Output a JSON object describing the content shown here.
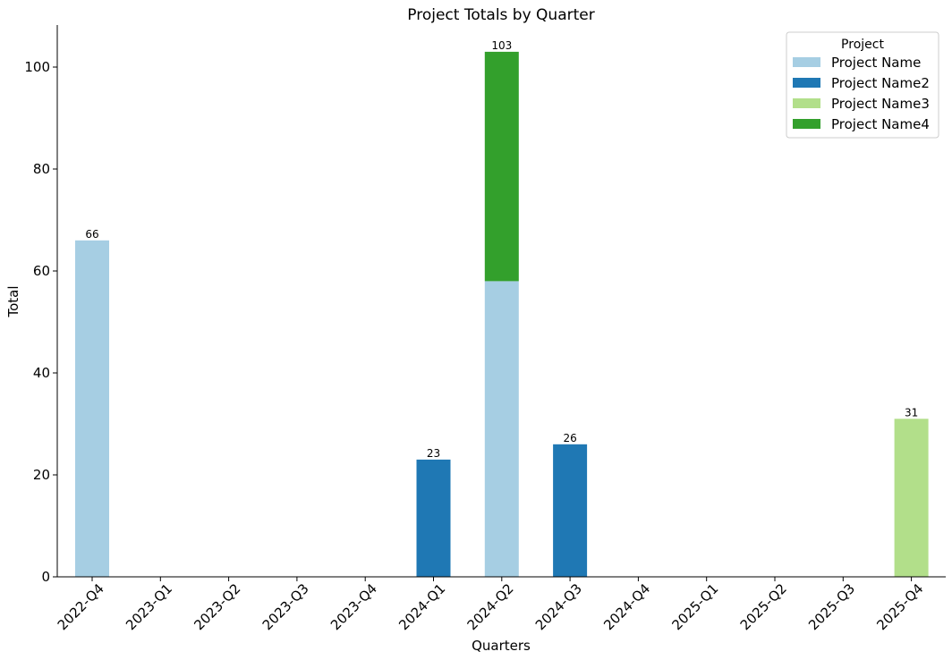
{
  "chart_data": {
    "type": "bar",
    "stacked": true,
    "title": "Project Totals by Quarter",
    "xlabel": "Quarters",
    "ylabel": "Total",
    "categories": [
      "2022-Q4",
      "2023-Q1",
      "2023-Q2",
      "2023-Q3",
      "2023-Q4",
      "2024-Q1",
      "2024-Q2",
      "2024-Q3",
      "2024-Q4",
      "2025-Q1",
      "2025-Q2",
      "2025-Q3",
      "2025-Q4"
    ],
    "ylim": [
      0,
      108
    ],
    "yticks": [
      0,
      20,
      40,
      60,
      80,
      100
    ],
    "grid": false,
    "legend": {
      "title": "Project",
      "placement": "top-right"
    },
    "series": [
      {
        "name": "Project Name",
        "color": "#a6cee3",
        "values": [
          66,
          0,
          0,
          0,
          0,
          0,
          58,
          0,
          0,
          0,
          0,
          0,
          0
        ]
      },
      {
        "name": "Project Name2",
        "color": "#1f78b4",
        "values": [
          0,
          0,
          0,
          0,
          0,
          23,
          0,
          26,
          0,
          0,
          0,
          0,
          0
        ]
      },
      {
        "name": "Project Name3",
        "color": "#b2df8a",
        "values": [
          0,
          0,
          0,
          0,
          0,
          0,
          0,
          0,
          0,
          0,
          0,
          0,
          31
        ]
      },
      {
        "name": "Project Name4",
        "color": "#33a02c",
        "values": [
          0,
          0,
          0,
          0,
          0,
          0,
          45,
          0,
          0,
          0,
          0,
          0,
          0
        ]
      }
    ],
    "totals": [
      66,
      null,
      null,
      null,
      null,
      23,
      103,
      26,
      null,
      null,
      null,
      null,
      31
    ]
  }
}
